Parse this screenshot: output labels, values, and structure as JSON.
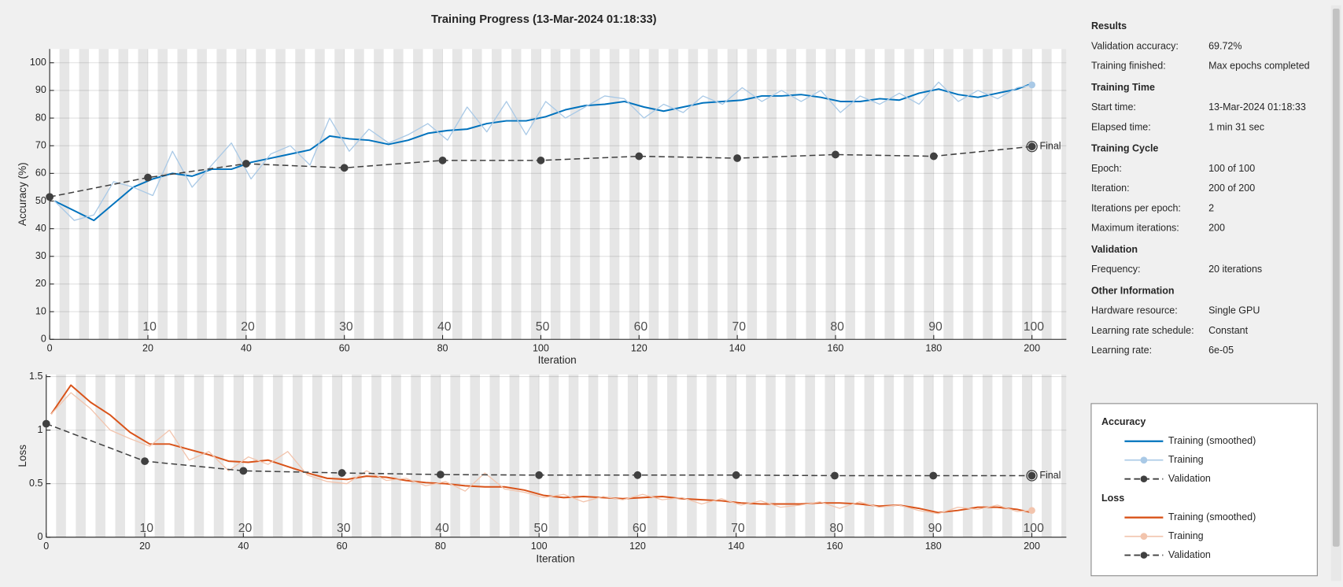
{
  "title": "Training Progress (13-Mar-2024 01:18:33)",
  "chart_data": [
    {
      "type": "line",
      "ylabel": "Accuracy (%)",
      "xlabel": "Iteration",
      "legend_title": "Accuracy",
      "final_label": "Final",
      "xlim": [
        0,
        207
      ],
      "xticks": [
        0,
        20,
        40,
        60,
        80,
        100,
        120,
        140,
        160,
        180,
        200
      ],
      "x2lim": [
        0,
        103.5
      ],
      "x2ticks": [
        10,
        20,
        30,
        40,
        50,
        60,
        70,
        80,
        90,
        100
      ],
      "ylim": [
        0,
        105
      ],
      "yticks": [
        0,
        10,
        20,
        30,
        40,
        50,
        60,
        70,
        80,
        90,
        100
      ],
      "grid": true,
      "series": [
        {
          "name": "Training (smoothed)",
          "color": "#0072bd",
          "width": 1.8,
          "x": [
            1,
            5,
            9,
            13,
            17,
            21,
            25,
            29,
            33,
            37,
            41,
            45,
            49,
            53,
            57,
            61,
            65,
            69,
            73,
            77,
            81,
            85,
            89,
            93,
            97,
            101,
            105,
            109,
            113,
            117,
            121,
            125,
            129,
            133,
            137,
            141,
            145,
            149,
            153,
            157,
            161,
            165,
            169,
            173,
            177,
            181,
            185,
            189,
            193,
            197,
            200
          ],
          "values": [
            50,
            46.5,
            43,
            49,
            55,
            58,
            60,
            59,
            61.5,
            61.5,
            64,
            65.5,
            67,
            68.5,
            73.5,
            72.5,
            72,
            70.5,
            72,
            74.5,
            75.5,
            76,
            78,
            79,
            79,
            80.5,
            83,
            84.5,
            85,
            86,
            84,
            82.5,
            84,
            85.5,
            86,
            86.5,
            88,
            88,
            88.5,
            87.5,
            86,
            86,
            87,
            86.5,
            89,
            90.5,
            88.5,
            87.5,
            89,
            90.5,
            92.5
          ]
        },
        {
          "name": "Training",
          "color": "#a9c9e6",
          "width": 1.2,
          "markers": "last",
          "x": [
            1,
            5,
            9,
            13,
            17,
            21,
            25,
            29,
            33,
            37,
            41,
            45,
            49,
            53,
            57,
            61,
            65,
            69,
            73,
            77,
            81,
            85,
            89,
            93,
            97,
            101,
            105,
            109,
            113,
            117,
            121,
            125,
            129,
            133,
            137,
            141,
            145,
            149,
            153,
            157,
            161,
            165,
            169,
            173,
            177,
            181,
            185,
            189,
            193,
            197,
            200
          ],
          "values": [
            50,
            43,
            45,
            57,
            55,
            52,
            68,
            55,
            63,
            71,
            58,
            67,
            70,
            63,
            80,
            68,
            76,
            71,
            74,
            78,
            72,
            84,
            75,
            86,
            74,
            86,
            80,
            84,
            88,
            87,
            80,
            85,
            82,
            88,
            85,
            91,
            86,
            90,
            86,
            90,
            82,
            88,
            85,
            89,
            85,
            93,
            86,
            90,
            87,
            91,
            92
          ]
        },
        {
          "name": "Validation",
          "color": "#404040",
          "width": 1.4,
          "dash": true,
          "markers": "all",
          "x": [
            0,
            20,
            40,
            60,
            80,
            100,
            120,
            140,
            160,
            180,
            200
          ],
          "values": [
            51.5,
            58.5,
            63.5,
            62,
            64.7,
            64.7,
            66.2,
            65.5,
            66.8,
            66.2,
            69.72
          ]
        }
      ]
    },
    {
      "type": "line",
      "ylabel": "Loss",
      "xlabel": "Iteration",
      "legend_title": "Loss",
      "final_label": "Final",
      "xlim": [
        0,
        207
      ],
      "xticks": [
        0,
        20,
        40,
        60,
        80,
        100,
        120,
        140,
        160,
        180,
        200
      ],
      "x2lim": [
        0,
        103.5
      ],
      "x2ticks": [
        10,
        20,
        30,
        40,
        50,
        60,
        70,
        80,
        90,
        100
      ],
      "ylim": [
        0,
        1.52
      ],
      "yticks": [
        0,
        0.5,
        1,
        1.5
      ],
      "grid": true,
      "series": [
        {
          "name": "Training (smoothed)",
          "color": "#d95319",
          "width": 1.8,
          "x": [
            1,
            5,
            9,
            13,
            17,
            21,
            25,
            29,
            33,
            37,
            41,
            45,
            49,
            53,
            57,
            61,
            65,
            69,
            73,
            77,
            81,
            85,
            89,
            93,
            97,
            101,
            105,
            109,
            113,
            117,
            121,
            125,
            129,
            133,
            137,
            141,
            145,
            149,
            153,
            157,
            161,
            165,
            169,
            173,
            177,
            181,
            185,
            189,
            193,
            197,
            200
          ],
          "values": [
            1.15,
            1.42,
            1.26,
            1.14,
            0.98,
            0.87,
            0.87,
            0.82,
            0.77,
            0.71,
            0.7,
            0.72,
            0.66,
            0.6,
            0.55,
            0.54,
            0.57,
            0.56,
            0.53,
            0.51,
            0.5,
            0.48,
            0.47,
            0.47,
            0.44,
            0.39,
            0.37,
            0.38,
            0.37,
            0.36,
            0.37,
            0.38,
            0.36,
            0.35,
            0.34,
            0.32,
            0.31,
            0.31,
            0.31,
            0.32,
            0.32,
            0.31,
            0.29,
            0.3,
            0.27,
            0.23,
            0.25,
            0.28,
            0.28,
            0.26,
            0.23
          ]
        },
        {
          "name": "Training",
          "color": "#f2c4ad",
          "width": 1.2,
          "markers": "last",
          "x": [
            1,
            5,
            9,
            13,
            17,
            21,
            25,
            29,
            33,
            37,
            41,
            45,
            49,
            53,
            57,
            61,
            65,
            69,
            73,
            77,
            81,
            85,
            89,
            93,
            97,
            101,
            105,
            109,
            113,
            117,
            121,
            125,
            129,
            133,
            137,
            141,
            145,
            149,
            153,
            157,
            161,
            165,
            169,
            173,
            177,
            181,
            185,
            189,
            193,
            197,
            200
          ],
          "values": [
            1.15,
            1.35,
            1.2,
            1.0,
            0.92,
            0.85,
            1.0,
            0.72,
            0.8,
            0.62,
            0.75,
            0.68,
            0.8,
            0.58,
            0.52,
            0.5,
            0.62,
            0.53,
            0.55,
            0.48,
            0.52,
            0.43,
            0.6,
            0.45,
            0.42,
            0.37,
            0.4,
            0.33,
            0.38,
            0.35,
            0.4,
            0.35,
            0.37,
            0.31,
            0.36,
            0.3,
            0.34,
            0.28,
            0.3,
            0.33,
            0.27,
            0.33,
            0.28,
            0.3,
            0.25,
            0.22,
            0.28,
            0.26,
            0.3,
            0.24,
            0.25
          ]
        },
        {
          "name": "Validation",
          "color": "#404040",
          "width": 1.4,
          "dash": true,
          "markers": "all",
          "x": [
            0,
            20,
            40,
            60,
            80,
            100,
            120,
            140,
            160,
            180,
            200
          ],
          "values": [
            1.06,
            0.71,
            0.62,
            0.6,
            0.585,
            0.58,
            0.58,
            0.58,
            0.575,
            0.575,
            0.575
          ]
        }
      ]
    }
  ],
  "info": {
    "sections": [
      {
        "heading": "Results",
        "rows": [
          [
            "Validation accuracy:",
            "69.72%"
          ],
          [
            "Training finished:",
            "Max epochs completed"
          ]
        ]
      },
      {
        "heading": "Training Time",
        "rows": [
          [
            "Start time:",
            "13-Mar-2024 01:18:33"
          ],
          [
            "Elapsed time:",
            "1 min 31 sec"
          ]
        ]
      },
      {
        "heading": "Training Cycle",
        "rows": [
          [
            "Epoch:",
            "100 of 100"
          ],
          [
            "Iteration:",
            "200 of 200"
          ],
          [
            "Iterations per epoch:",
            "2"
          ],
          [
            "Maximum iterations:",
            "200"
          ]
        ]
      },
      {
        "heading": "Validation",
        "rows": [
          [
            "Frequency:",
            "20 iterations"
          ]
        ]
      },
      {
        "heading": "Other Information",
        "rows": [
          [
            "Hardware resource:",
            "Single GPU"
          ],
          [
            "Learning rate schedule:",
            "Constant"
          ],
          [
            "Learning rate:",
            "6e-05"
          ]
        ]
      }
    ]
  }
}
